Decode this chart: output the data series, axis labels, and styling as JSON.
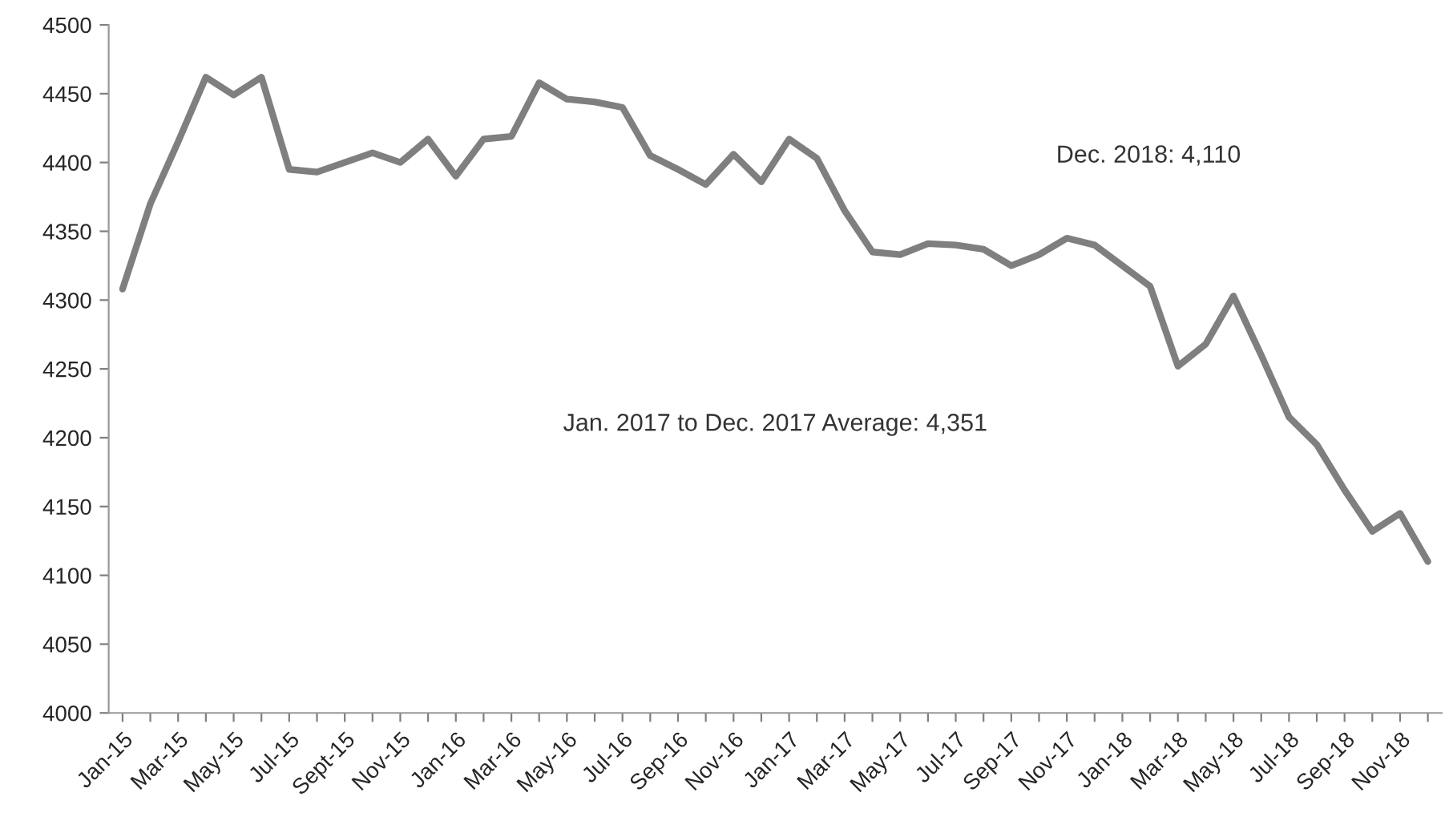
{
  "chart_data": {
    "type": "line",
    "categories": [
      "Jan-15",
      null,
      "Mar-15",
      null,
      "May-15",
      null,
      "Jul-15",
      null,
      "Sept-15",
      null,
      "Nov-15",
      null,
      "Jan-16",
      null,
      "Mar-16",
      null,
      "May-16",
      null,
      "Jul-16",
      null,
      "Sep-16",
      null,
      "Nov-16",
      null,
      "Jan-17",
      null,
      "Mar-17",
      null,
      "May-17",
      null,
      "Jul-17",
      null,
      "Sep-17",
      null,
      "Nov-17",
      null,
      "Jan-18",
      null,
      "Mar-18",
      null,
      "May-18",
      null,
      "Jul-18",
      null,
      "Sep-18",
      null,
      "Nov-18",
      null
    ],
    "series": [
      {
        "color": "#7f7f7f",
        "values": [
          4308,
          4370,
          4415,
          4462,
          4449,
          4462,
          4395,
          4393,
          4400,
          4407,
          4400,
          4417,
          4390,
          4417,
          4419,
          4458,
          4446,
          4444,
          4440,
          4405,
          4395,
          4384,
          4406,
          4386,
          4417,
          4403,
          4365,
          4335,
          4333,
          4341,
          4340,
          4337,
          4325,
          4333,
          4345,
          4340,
          4325,
          4310,
          4252,
          4268,
          4303,
          4260,
          4215,
          4195,
          4162,
          4132,
          4145,
          4110
        ]
      }
    ],
    "ylim": [
      4000,
      4500
    ],
    "yticks": [
      4000,
      4050,
      4100,
      4150,
      4200,
      4250,
      4300,
      4350,
      4400,
      4450,
      4500
    ],
    "grid": false,
    "legend": false,
    "marker": "none",
    "line_style": "solid",
    "annotations": [
      "Jan. 2017 to Dec. 2017 Average: 4,351",
      "Dec. 2018: 4,110"
    ]
  }
}
